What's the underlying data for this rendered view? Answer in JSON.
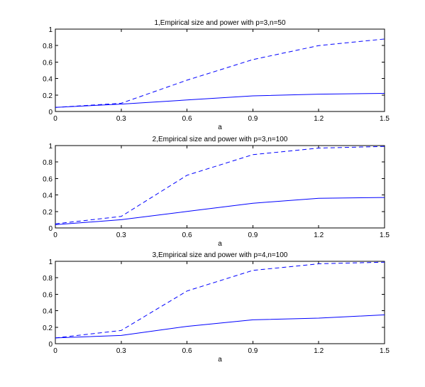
{
  "chart_data": [
    {
      "type": "line",
      "title": "1,Empirical size and power with p=3,n=50",
      "xlabel": "a",
      "ylabel": "",
      "xlim": [
        0,
        1.5
      ],
      "ylim": [
        0,
        1
      ],
      "xticks": [
        0,
        0.3,
        0.6,
        0.9,
        1.2,
        1.5
      ],
      "xtick_labels": [
        "0",
        "0.3",
        "0.6",
        "0.9",
        "1.2",
        "1.5"
      ],
      "yticks": [
        0,
        0.2,
        0.4,
        0.6,
        0.8,
        1
      ],
      "ytick_labels": [
        "0",
        "0.2",
        "0.4",
        "0.6",
        "0.8",
        "1"
      ],
      "grid": false,
      "x": [
        0,
        0.3,
        0.6,
        0.9,
        1.2,
        1.5
      ],
      "series": [
        {
          "style": "dashed",
          "color": "#0000ff",
          "values": [
            0.05,
            0.1,
            0.38,
            0.63,
            0.8,
            0.88
          ]
        },
        {
          "style": "solid",
          "color": "#0000ff",
          "values": [
            0.05,
            0.09,
            0.14,
            0.19,
            0.21,
            0.22
          ]
        }
      ]
    },
    {
      "type": "line",
      "title": "2,Empirical size and power with p=3,n=100",
      "xlabel": "a",
      "ylabel": "",
      "xlim": [
        0,
        1.5
      ],
      "ylim": [
        0,
        1
      ],
      "xticks": [
        0,
        0.3,
        0.6,
        0.9,
        1.2,
        1.5
      ],
      "xtick_labels": [
        "0",
        "0.3",
        "0.6",
        "0.9",
        "1.2",
        "1.5"
      ],
      "yticks": [
        0,
        0.2,
        0.4,
        0.6,
        0.8,
        1
      ],
      "ytick_labels": [
        "0",
        "0.2",
        "0.4",
        "0.6",
        "0.8",
        "1"
      ],
      "grid": false,
      "x": [
        0,
        0.3,
        0.6,
        0.9,
        1.2,
        1.5
      ],
      "series": [
        {
          "style": "dashed",
          "color": "#0000ff",
          "values": [
            0.05,
            0.14,
            0.64,
            0.89,
            0.97,
            0.99
          ]
        },
        {
          "style": "solid",
          "color": "#0000ff",
          "values": [
            0.04,
            0.1,
            0.2,
            0.3,
            0.36,
            0.37
          ]
        }
      ]
    },
    {
      "type": "line",
      "title": "3,Empirical size and power with p=4,n=100",
      "xlabel": "a",
      "ylabel": "",
      "xlim": [
        0,
        1.5
      ],
      "ylim": [
        0,
        1
      ],
      "xticks": [
        0,
        0.3,
        0.6,
        0.9,
        1.2,
        1.5
      ],
      "xtick_labels": [
        "0",
        "0.3",
        "0.6",
        "0.9",
        "1.2",
        "1.5"
      ],
      "yticks": [
        0,
        0.2,
        0.4,
        0.6,
        0.8,
        1
      ],
      "ytick_labels": [
        "0",
        "0.2",
        "0.4",
        "0.6",
        "0.8",
        "1"
      ],
      "grid": false,
      "x": [
        0,
        0.3,
        0.6,
        0.9,
        1.2,
        1.5
      ],
      "series": [
        {
          "style": "dashed",
          "color": "#0000ff",
          "values": [
            0.07,
            0.16,
            0.64,
            0.89,
            0.97,
            0.99
          ]
        },
        {
          "style": "solid",
          "color": "#0000ff",
          "values": [
            0.07,
            0.1,
            0.21,
            0.29,
            0.31,
            0.35
          ]
        }
      ]
    }
  ]
}
